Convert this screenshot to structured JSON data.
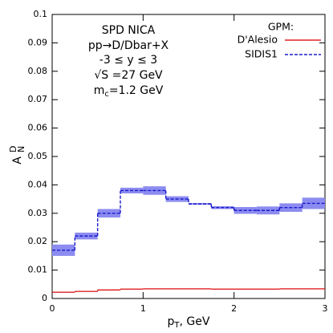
{
  "chart_data": {
    "type": "histogram",
    "annotations": [
      "SPD NICA",
      "pp→D/Dbar+X",
      "-3 ≤ y ≤ 3",
      "√S =27 GeV",
      {
        "main": "m",
        "sub": "c",
        "rest": "=1.2 GeV"
      }
    ],
    "xlabel": {
      "main": "p",
      "sub": "T",
      "rest": ", GeV"
    },
    "ylabel": {
      "main": "A",
      "sub": "N",
      "sup": "D"
    },
    "legend_title": "GPM:",
    "legend": "upper right",
    "bins": [
      0,
      0.25,
      0.5,
      0.75,
      1,
      1.25,
      1.5,
      1.75,
      2,
      2.25,
      2.5,
      2.75,
      3
    ],
    "series": [
      {
        "name": "D'Alesio",
        "color": "#e02020",
        "dash": false,
        "values": [
          0.0022,
          0.0025,
          0.003,
          0.0033,
          0.0034,
          0.0034,
          0.0034,
          0.0033,
          0.0033,
          0.0033,
          0.0034,
          0.0034
        ]
      },
      {
        "name": "SIDIS1",
        "color": "#1a1acc",
        "dash": true,
        "band_color": "#8c8cf0",
        "values": [
          0.017,
          0.022,
          0.03,
          0.038,
          0.038,
          0.035,
          0.0333,
          0.032,
          0.031,
          0.031,
          0.032,
          0.0335
        ],
        "errors": [
          0.002,
          0.0012,
          0.0015,
          0.001,
          0.0015,
          0.001,
          0.0003,
          0.0005,
          0.0012,
          0.0014,
          0.0015,
          0.002
        ]
      }
    ],
    "xlim": [
      0,
      3
    ],
    "xticks": [
      0,
      1,
      2,
      3
    ],
    "ylim": [
      0,
      0.1
    ],
    "yticks": [
      0,
      0.01,
      0.02,
      0.03,
      0.04,
      0.05,
      0.06,
      0.07,
      0.08,
      0.09,
      0.1
    ]
  }
}
